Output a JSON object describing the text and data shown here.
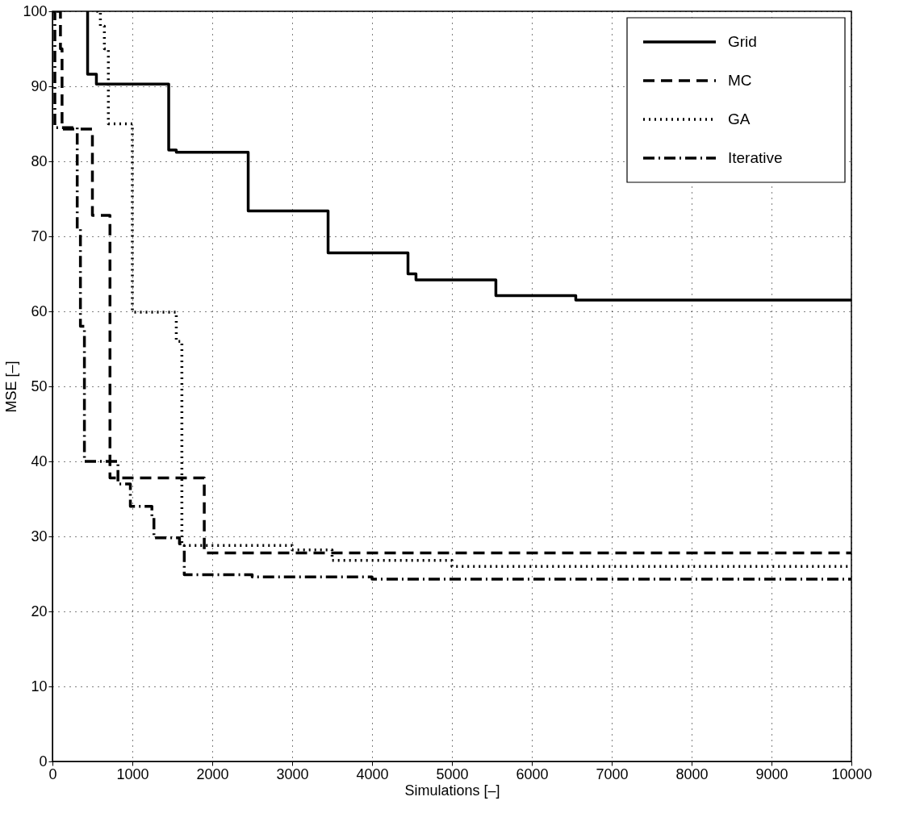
{
  "chart_data": {
    "type": "step",
    "xlabel": "Simulations [–]",
    "ylabel": "MSE [–]",
    "xlim": [
      0,
      10000
    ],
    "xticks": [
      0,
      1000,
      2000,
      3000,
      4000,
      5000,
      6000,
      7000,
      8000,
      9000,
      10000
    ],
    "ylim": [
      0,
      100
    ],
    "yticks": [
      0,
      10,
      20,
      30,
      40,
      50,
      60,
      70,
      80,
      90,
      100
    ],
    "grid": true,
    "legend": "top right",
    "marker": "none",
    "series": [
      {
        "name": "Grid",
        "color": "#000000",
        "line_style": "solid",
        "x": [
          440,
          440,
          550,
          1455,
          1550,
          2450,
          3450,
          4450,
          4550,
          5550,
          6550,
          10000
        ],
        "values": [
          100,
          91.6,
          90.3,
          81.5,
          81.2,
          73.4,
          67.8,
          65,
          64.2,
          62.1,
          61.5,
          61.5
        ]
      },
      {
        "name": "MC",
        "color": "#000000",
        "line_style": "dashed",
        "x": [
          50,
          100,
          120,
          500,
          720,
          1900,
          10000
        ],
        "values": [
          100,
          95,
          84.3,
          72.8,
          37.8,
          27.8,
          27.8
        ]
      },
      {
        "name": "GA",
        "color": "#000000",
        "line_style": "dotted",
        "x": [
          550,
          600,
          650,
          700,
          1000,
          1550,
          1620,
          3000,
          3500,
          5000,
          10000
        ],
        "values": [
          100,
          98,
          95,
          85,
          59.9,
          56,
          28.8,
          28.2,
          26.8,
          26,
          26
        ]
      },
      {
        "name": "Iterative",
        "color": "#000000",
        "line_style": "dashdot",
        "x": [
          0,
          30,
          310,
          350,
          400,
          820,
          975,
          1245,
          1270,
          1590,
          1650,
          2500,
          4000,
          10000
        ],
        "values": [
          100,
          84.5,
          71,
          58,
          40,
          37,
          34,
          32.7,
          29.8,
          29,
          24.9,
          24.6,
          24.3,
          24.3
        ]
      }
    ]
  }
}
